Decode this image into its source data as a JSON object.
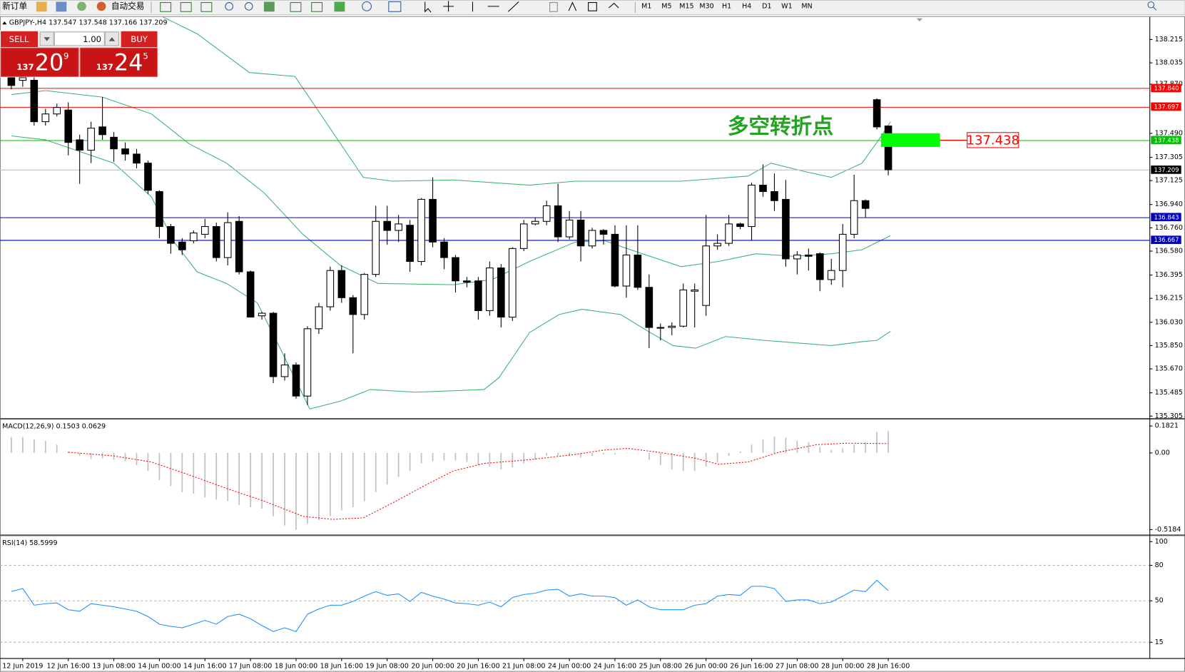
{
  "toolbar": {
    "new_order": "新订单",
    "auto_trading": "自动交易",
    "timeframes": [
      "M1",
      "M5",
      "M15",
      "M30",
      "H1",
      "H4",
      "D1",
      "W1",
      "MN"
    ]
  },
  "trade_panel": {
    "sell": "SELL",
    "lots": "1.00",
    "buy": "BUY",
    "sell_price": {
      "big": "137",
      "main": "20",
      "small": "9"
    },
    "buy_price": {
      "big": "137",
      "main": "24",
      "small": "5"
    }
  },
  "chart_data": [
    {
      "type": "candlestick",
      "title": "GBPJPY-,H4  137.547 137.548 137.166 137.209",
      "categories": [
        null,
        "12 Jun 2019",
        null,
        null,
        null,
        "12 Jun 16:00",
        null,
        null,
        null,
        "13 Jun 08:00",
        null,
        null,
        null,
        "14 Jun 00:00",
        null,
        null,
        null,
        "14 Jun 16:00",
        null,
        null,
        null,
        "17 Jun 08:00",
        null,
        null,
        null,
        "18 Jun 00:00",
        null,
        null,
        null,
        "18 Jun 16:00",
        null,
        null,
        null,
        "19 Jun 08:00",
        null,
        null,
        null,
        "20 Jun 00:00",
        null,
        null,
        null,
        "20 Jun 16:00",
        null,
        null,
        null,
        "21 Jun 08:00",
        null,
        null,
        null,
        "24 Jun 00:00",
        null,
        null,
        null,
        "24 Jun 16:00",
        null,
        null,
        null,
        "25 Jun 08:00",
        null,
        null,
        null,
        "26 Jun 00:00",
        null,
        null,
        null,
        "26 Jun 16:00",
        null,
        null,
        null,
        "27 Jun 08:00",
        null,
        null,
        null,
        "28 Jun 00:00",
        null,
        null,
        null,
        "28 Jun 16:00"
      ],
      "open": [
        137.93,
        137.9,
        137.9,
        137.58,
        137.64,
        137.67,
        137.44,
        137.36,
        137.54,
        137.46,
        137.37,
        137.33,
        137.26,
        137.04,
        136.77,
        136.65,
        136.66,
        136.71,
        136.77,
        136.53,
        136.81,
        136.42,
        136.08,
        136.1,
        135.61,
        135.7,
        135.46,
        135.98,
        136.15,
        136.43,
        136.22,
        136.09,
        136.4,
        136.81,
        136.74,
        136.78,
        136.5,
        136.98,
        136.65,
        136.53,
        136.35,
        136.35,
        136.12,
        136.45,
        136.07,
        136.6,
        136.79,
        136.81,
        136.93,
        136.69,
        136.82,
        136.62,
        136.74,
        136.71,
        136.31,
        136.55,
        136.3,
        135.99,
        135.99,
        136.0,
        136.27,
        136.16,
        136.62,
        136.64,
        136.79,
        136.77,
        137.09,
        137.04,
        136.98,
        136.52,
        136.55,
        136.56,
        136.36,
        136.43,
        136.71,
        136.97,
        137.75,
        137.547
      ],
      "high": [
        137.98,
        137.95,
        137.93,
        137.68,
        137.72,
        137.73,
        137.48,
        137.58,
        137.77,
        137.5,
        137.42,
        137.37,
        137.28,
        137.05,
        136.79,
        136.68,
        136.74,
        136.83,
        136.8,
        136.88,
        136.85,
        136.43,
        136.11,
        136.11,
        135.79,
        135.72,
        136.0,
        136.18,
        136.46,
        136.47,
        136.24,
        136.41,
        136.93,
        136.93,
        136.86,
        136.82,
        136.99,
        137.15,
        136.68,
        136.55,
        136.38,
        136.38,
        136.5,
        136.48,
        136.61,
        136.82,
        136.84,
        136.97,
        137.1,
        136.89,
        136.89,
        136.76,
        136.75,
        136.78,
        136.78,
        136.78,
        136.4,
        136.02,
        136.03,
        136.33,
        136.33,
        136.86,
        136.71,
        136.86,
        136.8,
        137.11,
        137.25,
        137.18,
        137.13,
        136.58,
        136.6,
        136.57,
        136.52,
        136.79,
        137.17,
        136.98,
        137.76,
        137.548
      ],
      "low": [
        137.83,
        137.85,
        137.55,
        137.55,
        137.62,
        137.32,
        137.1,
        137.26,
        137.44,
        137.27,
        137.28,
        137.22,
        137.02,
        136.68,
        136.56,
        136.55,
        136.64,
        136.68,
        136.5,
        136.47,
        136.4,
        136.07,
        136.05,
        135.56,
        135.58,
        135.44,
        135.39,
        135.94,
        136.12,
        136.18,
        135.79,
        136.05,
        136.38,
        136.63,
        136.65,
        136.42,
        136.47,
        136.61,
        136.44,
        136.26,
        136.3,
        136.05,
        136.08,
        135.99,
        136.04,
        136.58,
        136.78,
        136.78,
        136.65,
        136.67,
        136.5,
        136.6,
        136.63,
        136.3,
        136.22,
        136.28,
        135.83,
        135.89,
        135.93,
        135.99,
        135.99,
        136.08,
        136.59,
        136.62,
        136.75,
        136.66,
        137.0,
        136.89,
        136.46,
        136.4,
        136.43,
        136.27,
        136.32,
        136.3,
        136.68,
        136.84,
        137.52,
        137.166
      ],
      "close": [
        137.86,
        137.92,
        137.58,
        137.64,
        137.69,
        137.42,
        137.36,
        137.53,
        137.48,
        137.37,
        137.33,
        137.26,
        137.05,
        136.77,
        136.64,
        136.59,
        136.72,
        136.77,
        136.53,
        136.8,
        136.42,
        136.07,
        136.1,
        135.61,
        135.7,
        135.46,
        135.98,
        136.15,
        136.43,
        136.22,
        136.09,
        136.4,
        136.81,
        136.74,
        136.79,
        136.5,
        136.98,
        136.65,
        136.53,
        136.35,
        136.34,
        136.12,
        136.45,
        136.07,
        136.6,
        136.79,
        136.81,
        136.93,
        136.69,
        136.82,
        136.62,
        136.74,
        136.71,
        136.31,
        136.55,
        136.3,
        135.99,
        135.99,
        136.0,
        136.28,
        136.28,
        136.62,
        136.64,
        136.79,
        136.77,
        137.09,
        137.04,
        136.97,
        136.52,
        136.55,
        136.54,
        136.36,
        136.43,
        136.71,
        136.97,
        136.91,
        137.54,
        137.209
      ],
      "up_color": "#ffffff",
      "down_color": "#000000",
      "ylim": [
        135.287,
        138.39
      ],
      "yticks": [
        138.215,
        138.035,
        {
          "value": 137.87,
          "label": "137.870"
        },
        {
          "value": 137.49,
          "label": "137.490"
        },
        137.305,
        137.125,
        {
          "value": 136.94,
          "label": "136.940"
        },
        {
          "value": 136.76,
          "label": "136.760"
        },
        {
          "value": 136.58,
          "label": "136.580"
        },
        136.395,
        136.215,
        {
          "value": 136.03,
          "label": "136.030"
        },
        {
          "value": 135.85,
          "label": "135.850"
        },
        {
          "value": 135.67,
          "label": "135.670"
        },
        135.485,
        135.305
      ],
      "bands": [
        {
          "color": "#3cb371",
          "x": [
            13.3,
            16.3,
            20.9,
            24.9,
            30.9,
            33.5,
            38.8,
            45.5,
            49.5,
            58.8,
            64.7,
            66.7,
            69.4,
            72.0,
            74.7,
            76.4,
            77.2
          ],
          "values": [
            138.39,
            138.26,
            137.96,
            137.93,
            137.15,
            137.12,
            137.13,
            137.09,
            137.12,
            137.12,
            137.16,
            137.26,
            137.2,
            137.15,
            137.26,
            137.47,
            137.58
          ]
        },
        {
          "color": "#3cb371",
          "x": [
            0,
            3.0,
            8.0,
            12.3,
            15.6,
            18.9,
            22.2,
            25.6,
            28.9,
            32.2,
            38.8,
            42.2,
            45.5,
            49.5,
            52.1,
            55.4,
            58.8,
            62.1,
            65.4,
            68.7,
            72.0,
            74.7,
            77.2
          ],
          "values": [
            137.79,
            137.82,
            137.77,
            137.64,
            137.41,
            137.26,
            137.03,
            136.71,
            136.47,
            136.33,
            136.32,
            136.36,
            136.5,
            136.65,
            136.66,
            136.56,
            136.46,
            136.5,
            136.56,
            136.54,
            136.56,
            136.59,
            136.7
          ]
        },
        {
          "color": "#3cb371",
          "x": [
            0,
            3.0,
            9.0,
            12.3,
            14.3,
            16.3,
            18.9,
            21.6,
            23.6,
            26.2,
            28.9,
            31.5,
            35.5,
            41.5,
            42.8,
            45.5,
            48.1,
            50.1,
            53.5,
            56.1,
            58.1,
            60.1,
            62.7,
            66.1,
            72.0,
            74.7,
            76.0,
            77.2
          ],
          "values": [
            137.47,
            137.44,
            137.26,
            137.0,
            136.65,
            136.42,
            136.33,
            136.18,
            135.83,
            135.36,
            135.42,
            135.51,
            135.49,
            135.51,
            135.6,
            135.95,
            136.09,
            136.13,
            136.09,
            135.95,
            135.85,
            135.83,
            135.92,
            135.89,
            135.85,
            135.88,
            135.89,
            135.96
          ]
        }
      ],
      "levels": [
        {
          "value": 137.84,
          "label": "137.840",
          "color": "#ff0000"
        },
        {
          "value": 137.697,
          "label": "137.697",
          "color": "#ff0000"
        },
        {
          "value": 137.438,
          "label": "137.438",
          "color": "#00c000"
        },
        {
          "value": 137.209,
          "label": "137.209",
          "color": "#c0c0c0",
          "label_color": "#000000"
        },
        {
          "value": 136.843,
          "label": "136.843",
          "color": "#0000c0"
        },
        {
          "value": 136.667,
          "label": "136.667",
          "color": "#0000c0"
        }
      ],
      "annotation": "多空转折点",
      "annotation_color": "#22a322",
      "marker": {
        "value": 137.438,
        "label": "137.438",
        "color": "#00ff00",
        "label_color": "#ff0000"
      }
    },
    {
      "type": "macd",
      "title": "MACD(12,26,9) 0.1503 0.0629",
      "values": [
        0.107,
        0.107,
        0.092,
        0.082,
        0.056,
        0.01,
        -0.02,
        -0.041,
        -0.036,
        -0.046,
        -0.056,
        -0.082,
        -0.122,
        -0.184,
        -0.224,
        -0.265,
        -0.275,
        -0.301,
        -0.316,
        -0.326,
        -0.352,
        -0.367,
        -0.377,
        -0.428,
        -0.49,
        -0.52,
        -0.479,
        -0.454,
        -0.428,
        -0.388,
        -0.367,
        -0.326,
        -0.265,
        -0.214,
        -0.163,
        -0.122,
        -0.071,
        -0.056,
        -0.051,
        -0.051,
        -0.061,
        -0.082,
        -0.092,
        -0.112,
        -0.097,
        -0.071,
        -0.046,
        -0.02,
        -0.02,
        -0.02,
        -0.031,
        -0.02,
        -0.01,
        -0.01,
        0.003,
        -0.003,
        -0.046,
        -0.082,
        -0.112,
        -0.122,
        -0.122,
        -0.092,
        -0.061,
        -0.02,
        0.01,
        0.056,
        0.092,
        0.112,
        0.102,
        0.082,
        0.071,
        0.041,
        0.02,
        0.031,
        0.056,
        0.071,
        0.143,
        0.1503
      ],
      "color": "#c0c0c0",
      "signal": {
        "color": "#ff0000",
        "x": [
          5.0,
          9.0,
          12.3,
          15.6,
          18.9,
          22.2,
          25.6,
          28.2,
          30.9,
          33.5,
          36.2,
          38.8,
          41.5,
          45.5,
          49.5,
          52.1,
          54.1,
          56.8,
          60.1,
          62.1,
          64.7,
          67.4,
          70.7,
          73.4,
          77.0
        ],
        "values": [
          0.005,
          -0.02,
          -0.061,
          -0.148,
          -0.24,
          -0.326,
          -0.428,
          -0.449,
          -0.439,
          -0.337,
          -0.224,
          -0.122,
          -0.071,
          -0.046,
          -0.01,
          0.02,
          0.031,
          0.005,
          -0.036,
          -0.077,
          -0.061,
          0.005,
          0.056,
          0.066,
          0.0629
        ]
      },
      "ylim": [
        -0.554,
        0.218
      ],
      "yticks": [
        0.1821,
        {
          "value": 0,
          "label": "0.00"
        },
        -0.5184
      ]
    },
    {
      "type": "line",
      "title": "RSI(14) 58.5999",
      "values": [
        57.8,
        60.4,
        46.3,
        47.6,
        48.2,
        42.5,
        41.2,
        47.6,
        46.3,
        45.0,
        43.1,
        41.2,
        36.7,
        30.3,
        28.4,
        27.2,
        30.3,
        33.5,
        30.3,
        36.7,
        38.7,
        34.8,
        29.1,
        24.0,
        27.2,
        24.0,
        38.7,
        43.1,
        46.3,
        46.3,
        49.5,
        54.0,
        57.8,
        54.6,
        55.9,
        49.5,
        57.2,
        54.0,
        51.4,
        48.2,
        47.6,
        46.3,
        48.9,
        45.0,
        52.7,
        55.3,
        56.5,
        59.1,
        59.7,
        54.0,
        55.9,
        54.0,
        54.0,
        52.7,
        46.3,
        50.8,
        45.0,
        42.5,
        42.5,
        42.5,
        46.3,
        47.6,
        54.0,
        55.3,
        54.6,
        62.3,
        62.3,
        60.4,
        49.5,
        50.8,
        50.8,
        47.6,
        48.9,
        54.0,
        59.1,
        57.8,
        67.4,
        58.5999
      ],
      "color": "#1e90ff",
      "ylim": [
        1.6,
        103.8
      ],
      "yticks": [
        100,
        80,
        50,
        15
      ],
      "levels": [
        80,
        50,
        15
      ],
      "level_color": "#b0b0b0"
    }
  ]
}
